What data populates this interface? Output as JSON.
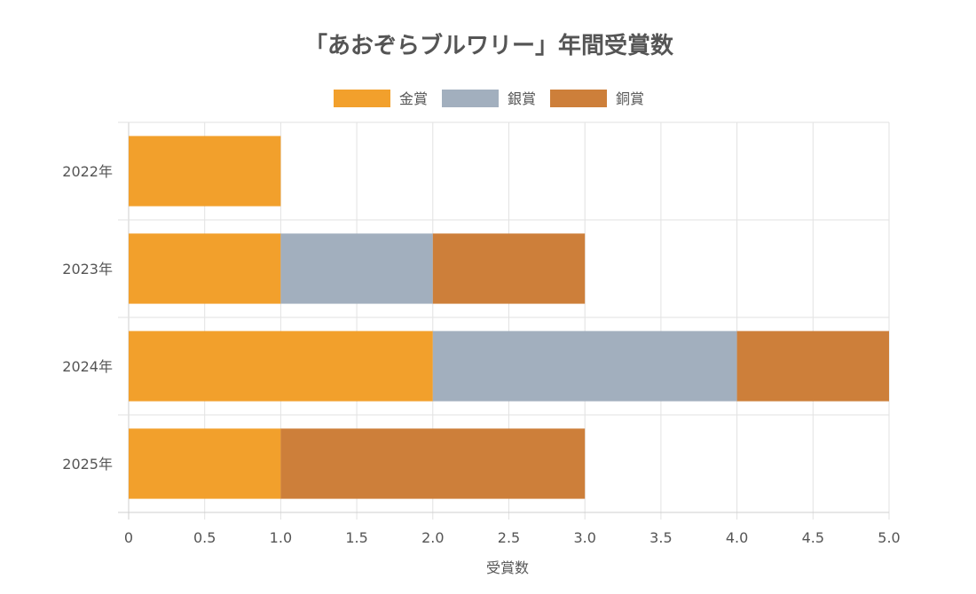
{
  "chart_data": {
    "type": "bar",
    "orientation": "horizontal",
    "stacked": true,
    "title": "「あおぞらブルワリー」年間受賞数",
    "xlabel": "受賞数",
    "ylabel": "",
    "categories": [
      "2022年",
      "2023年",
      "2024年",
      "2025年"
    ],
    "series": [
      {
        "name": "金賞",
        "color": "#f2a02c",
        "values": [
          1,
          1,
          2,
          1
        ]
      },
      {
        "name": "銀賞",
        "color": "#a2afbe",
        "values": [
          0,
          1,
          2,
          0
        ]
      },
      {
        "name": "銅賞",
        "color": "#cd7f3a",
        "values": [
          0,
          1,
          1,
          2
        ]
      }
    ],
    "xlim": [
      0,
      5
    ],
    "x_ticks": [
      "0",
      "0.5",
      "1.0",
      "1.5",
      "2.0",
      "2.5",
      "3.0",
      "3.5",
      "4.0",
      "4.5",
      "5.0"
    ],
    "grid": true,
    "legend_position": "top-center"
  }
}
